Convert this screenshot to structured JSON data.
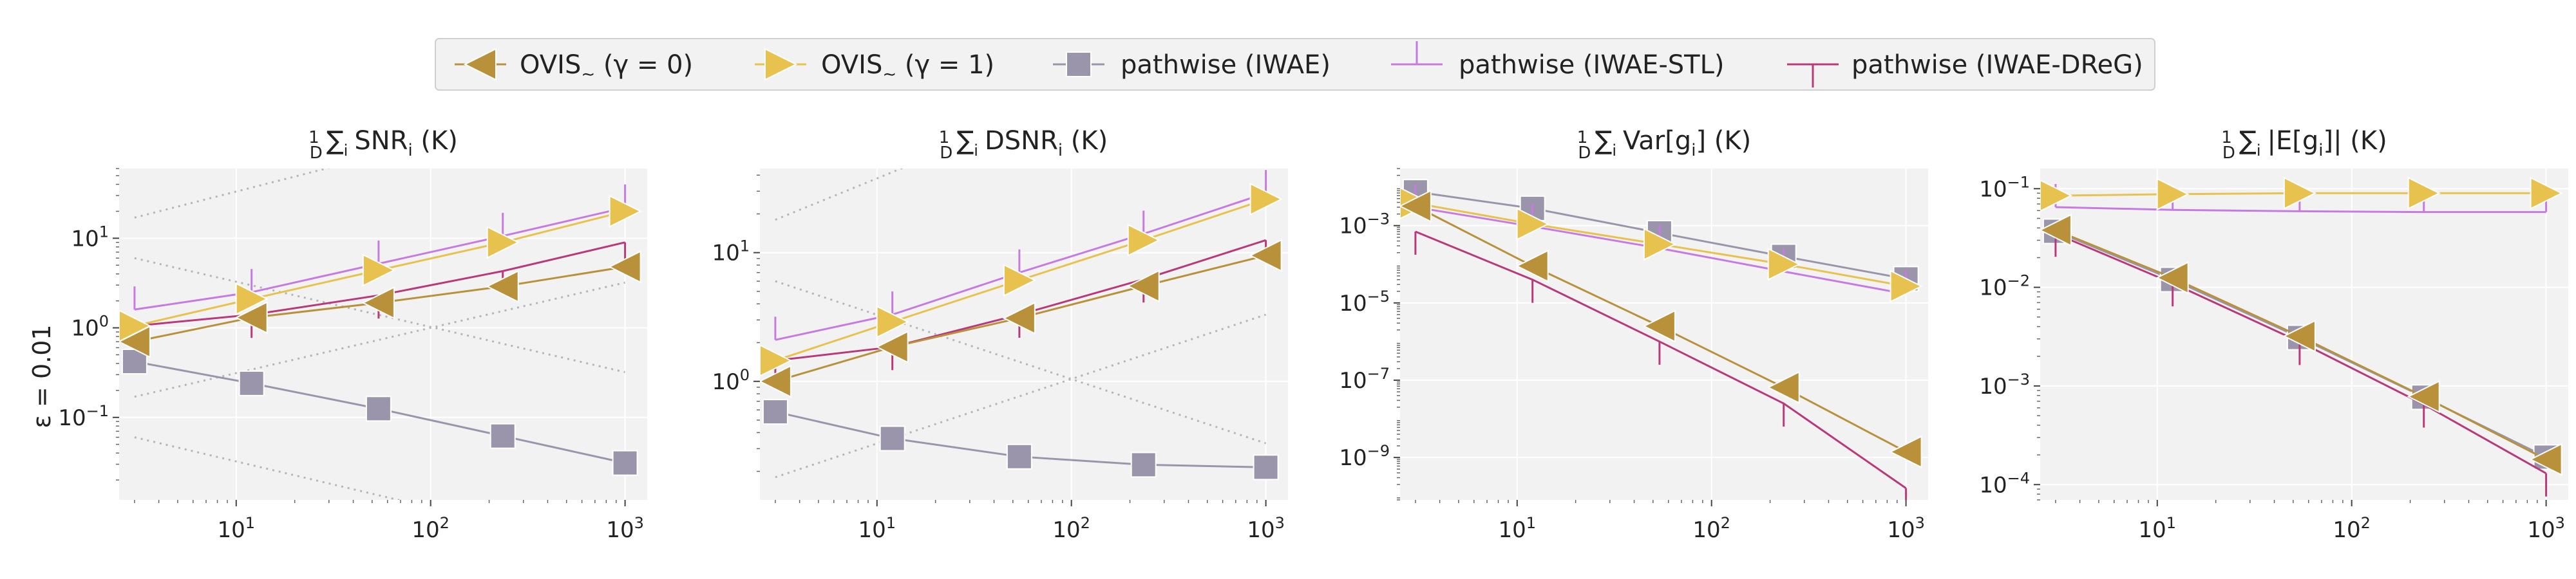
{
  "row_label": "ε = 0.01",
  "colors": {
    "ovis0": "#b8913a",
    "ovis1": "#e8c24e",
    "iwae": "#9a95aa",
    "stl": "#c77be0",
    "dreg": "#b83a7a",
    "panel_bg": "#f2f2f2",
    "grid": "#ffffff",
    "ref": "#b5b5b5"
  },
  "legend": [
    {
      "key": "ovis0",
      "label": "OVIS~ (γ = 0)",
      "marker": "triangle-left"
    },
    {
      "key": "ovis1",
      "label": "OVIS~ (γ = 1)",
      "marker": "triangle-right"
    },
    {
      "key": "iwae",
      "label": "pathwise (IWAE)",
      "marker": "square"
    },
    {
      "key": "stl",
      "label": "pathwise (IWAE-STL)",
      "marker": "tick-up"
    },
    {
      "key": "dreg",
      "label": "pathwise (IWAE-DReG)",
      "marker": "tick-down"
    }
  ],
  "chart_data": [
    {
      "type": "line",
      "title": "1/D ∑i SNRi (K)",
      "xscale": "log",
      "yscale": "log",
      "xlim": [
        2.5,
        1300
      ],
      "ylim": [
        0.012,
        60
      ],
      "x": [
        3,
        12,
        54,
        235,
        1000
      ],
      "xticks": [
        {
          "v": 10,
          "label": "10^1"
        },
        {
          "v": 100,
          "label": "10^2"
        },
        {
          "v": 1000,
          "label": "10^3"
        }
      ],
      "yticks": [
        {
          "v": 0.1,
          "label": "10^-1"
        },
        {
          "v": 1,
          "label": "10^0"
        },
        {
          "v": 10,
          "label": "10^1"
        }
      ],
      "ref_lines": [
        {
          "x": [
            3,
            1000
          ],
          "y": [
            17,
            430
          ]
        },
        {
          "x": [
            3,
            1000
          ],
          "y": [
            0.17,
            3.2
          ]
        },
        {
          "x": [
            3,
            1000
          ],
          "y": [
            6,
            0.32
          ]
        },
        {
          "x": [
            3,
            1000
          ],
          "y": [
            0.06,
            0.003
          ]
        }
      ],
      "series": [
        {
          "key": "ovis0",
          "values": [
            0.7,
            1.3,
            1.9,
            2.9,
            4.8
          ]
        },
        {
          "key": "ovis1",
          "values": [
            1.05,
            2.1,
            4.4,
            9.0,
            20
          ]
        },
        {
          "key": "iwae",
          "values": [
            0.42,
            0.24,
            0.125,
            0.062,
            0.031
          ]
        },
        {
          "key": "stl",
          "values": [
            1.6,
            2.5,
            5.2,
            10.6,
            22
          ]
        },
        {
          "key": "dreg",
          "values": [
            1.05,
            1.4,
            2.3,
            4.3,
            9
          ]
        }
      ]
    },
    {
      "type": "line",
      "title": "1/D ∑i DSNRi (K)",
      "xscale": "log",
      "yscale": "log",
      "xlim": [
        2.5,
        1300
      ],
      "ylim": [
        0.12,
        45
      ],
      "x": [
        3,
        12,
        54,
        235,
        1000
      ],
      "xticks": [
        {
          "v": 10,
          "label": "10^1"
        },
        {
          "v": 100,
          "label": "10^2"
        },
        {
          "v": 1000,
          "label": "10^3"
        }
      ],
      "yticks": [
        {
          "v": 1,
          "label": "10^0"
        },
        {
          "v": 10,
          "label": "10^1"
        }
      ],
      "ref_lines": [
        {
          "x": [
            3,
            1000
          ],
          "y": [
            18,
            640
          ]
        },
        {
          "x": [
            3,
            1000
          ],
          "y": [
            0.18,
            3.3
          ]
        },
        {
          "x": [
            3,
            1000
          ],
          "y": [
            6,
            0.33
          ]
        }
      ],
      "series": [
        {
          "key": "ovis0",
          "values": [
            1.0,
            1.85,
            3.1,
            5.5,
            9.5
          ]
        },
        {
          "key": "ovis1",
          "values": [
            1.45,
            2.9,
            6.1,
            12.5,
            26
          ]
        },
        {
          "key": "iwae",
          "values": [
            0.58,
            0.36,
            0.26,
            0.225,
            0.215
          ]
        },
        {
          "key": "stl",
          "values": [
            2.1,
            3.3,
            7.0,
            14,
            29
          ]
        },
        {
          "key": "dreg",
          "values": [
            1.45,
            1.85,
            3.3,
            6.2,
            12.5
          ]
        }
      ]
    },
    {
      "type": "line",
      "title": "1/D ∑i Var[gi] (K)",
      "xscale": "log",
      "yscale": "log",
      "xlim": [
        2.5,
        1300
      ],
      "ylim": [
        8e-11,
        0.03
      ],
      "x": [
        3,
        12,
        54,
        235,
        1000
      ],
      "xticks": [
        {
          "v": 10,
          "label": "10^1"
        },
        {
          "v": 100,
          "label": "10^2"
        },
        {
          "v": 1000,
          "label": "10^3"
        }
      ],
      "yticks": [
        {
          "v": 1e-09,
          "label": "10^-9"
        },
        {
          "v": 1e-07,
          "label": "10^-7"
        },
        {
          "v": 1e-05,
          "label": "10^-5"
        },
        {
          "v": 0.001,
          "label": "10^-3"
        }
      ],
      "ref_lines": [],
      "series": [
        {
          "key": "ovis0",
          "values": [
            0.0032,
            9e-05,
            2.5e-06,
            6.5e-08,
            1.4e-09
          ]
        },
        {
          "key": "ovis1",
          "values": [
            0.0038,
            0.0011,
            0.00033,
            0.0001,
            2.7e-05
          ]
        },
        {
          "key": "iwae",
          "values": [
            0.0075,
            0.0028,
            0.00065,
            0.00016,
            4.2e-05
          ]
        },
        {
          "key": "stl",
          "values": [
            0.003,
            0.00095,
            0.00026,
            6.5e-05,
            1.7e-05
          ]
        },
        {
          "key": "dreg",
          "values": [
            0.0007,
            4e-05,
            1e-06,
            2.5e-08,
            1.6e-10
          ]
        }
      ]
    },
    {
      "type": "line",
      "title": "1/D ∑i |E[gi]| (K)",
      "xscale": "log",
      "yscale": "log",
      "xlim": [
        2.5,
        1300
      ],
      "ylim": [
        7e-05,
        0.16
      ],
      "x": [
        3,
        12,
        54,
        235,
        1000
      ],
      "xticks": [
        {
          "v": 10,
          "label": "10^1"
        },
        {
          "v": 100,
          "label": "10^2"
        },
        {
          "v": 1000,
          "label": "10^3"
        }
      ],
      "yticks": [
        {
          "v": 0.0001,
          "label": "10^-4"
        },
        {
          "v": 0.001,
          "label": "10^-3"
        },
        {
          "v": 0.01,
          "label": "10^-2"
        },
        {
          "v": 0.1,
          "label": "10^-1"
        }
      ],
      "ref_lines": [],
      "series": [
        {
          "key": "ovis0",
          "values": [
            0.038,
            0.0125,
            0.0032,
            0.00078,
            0.00018
          ]
        },
        {
          "key": "ovis1",
          "values": [
            0.085,
            0.088,
            0.09,
            0.09,
            0.09
          ]
        },
        {
          "key": "iwae",
          "values": [
            0.037,
            0.012,
            0.0031,
            0.00077,
            0.00019
          ]
        },
        {
          "key": "stl",
          "values": [
            0.065,
            0.061,
            0.059,
            0.058,
            0.058
          ]
        },
        {
          "key": "dreg",
          "values": [
            0.035,
            0.011,
            0.0028,
            0.00065,
            0.00013
          ]
        }
      ]
    }
  ]
}
